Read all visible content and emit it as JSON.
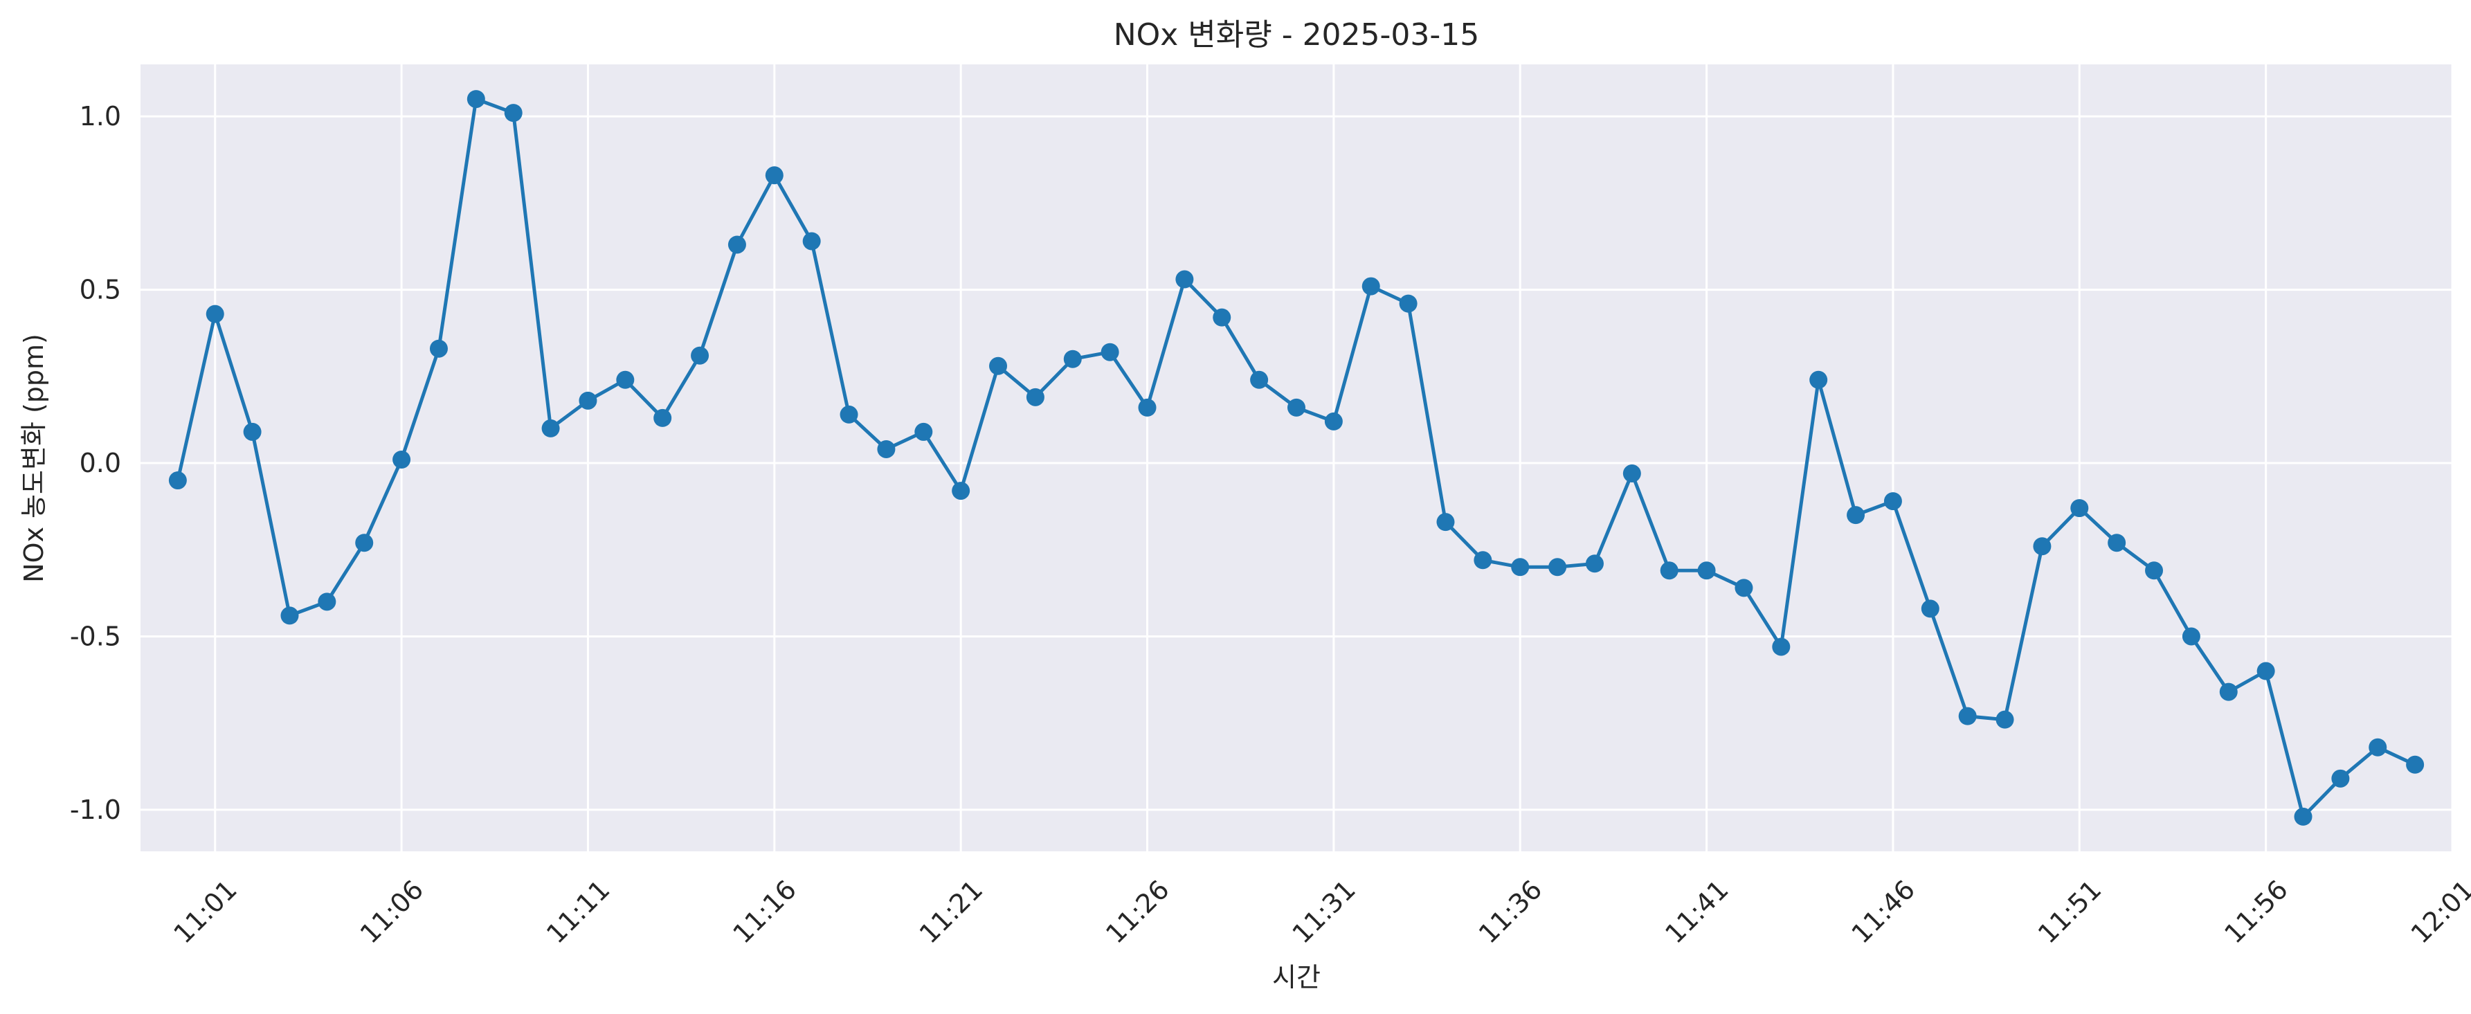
{
  "chart_data": {
    "type": "line",
    "title": "NOx 변화량 - 2025-03-15",
    "xlabel": "시간",
    "ylabel": "NOx 농도변화 (ppm)",
    "grid": true,
    "legend": "none",
    "x_start": "11:00",
    "x_step_minutes": 1,
    "xlim": [
      -1.0,
      61.0
    ],
    "ylim": [
      -1.12,
      1.15
    ],
    "x_ticks": [
      {
        "label": "11:01",
        "minute": 1
      },
      {
        "label": "11:06",
        "minute": 6
      },
      {
        "label": "11:11",
        "minute": 11
      },
      {
        "label": "11:16",
        "minute": 16
      },
      {
        "label": "11:21",
        "minute": 21
      },
      {
        "label": "11:26",
        "minute": 26
      },
      {
        "label": "11:31",
        "minute": 31
      },
      {
        "label": "11:36",
        "minute": 36
      },
      {
        "label": "11:41",
        "minute": 41
      },
      {
        "label": "11:46",
        "minute": 46
      },
      {
        "label": "11:51",
        "minute": 51
      },
      {
        "label": "11:56",
        "minute": 56
      },
      {
        "label": "12:01",
        "minute": 61
      }
    ],
    "y_ticks": [
      {
        "label": "1.0",
        "value": 1.0
      },
      {
        "label": "0.5",
        "value": 0.5
      },
      {
        "label": "0.0",
        "value": 0.0
      },
      {
        "label": "-0.5",
        "value": -0.5
      },
      {
        "label": "-1.0",
        "value": -1.0
      }
    ],
    "series": [
      {
        "color": "#1f77b4",
        "values": [
          -0.05,
          0.43,
          0.09,
          -0.44,
          -0.4,
          -0.23,
          0.01,
          0.33,
          1.05,
          1.01,
          0.1,
          0.18,
          0.24,
          0.13,
          0.31,
          0.63,
          0.83,
          0.64,
          0.14,
          0.04,
          0.09,
          -0.08,
          0.28,
          0.19,
          0.3,
          0.32,
          0.16,
          0.53,
          0.42,
          0.24,
          0.16,
          0.12,
          0.51,
          0.46,
          -0.17,
          -0.28,
          -0.3,
          -0.3,
          -0.29,
          -0.03,
          -0.31,
          -0.31,
          -0.36,
          -0.53,
          0.24,
          -0.15,
          -0.11,
          -0.42,
          -0.73,
          -0.74,
          -0.24,
          -0.13,
          -0.23,
          -0.31,
          -0.5,
          -0.66,
          -0.6,
          -1.02,
          -0.91,
          -0.82,
          -0.87
        ]
      }
    ]
  }
}
